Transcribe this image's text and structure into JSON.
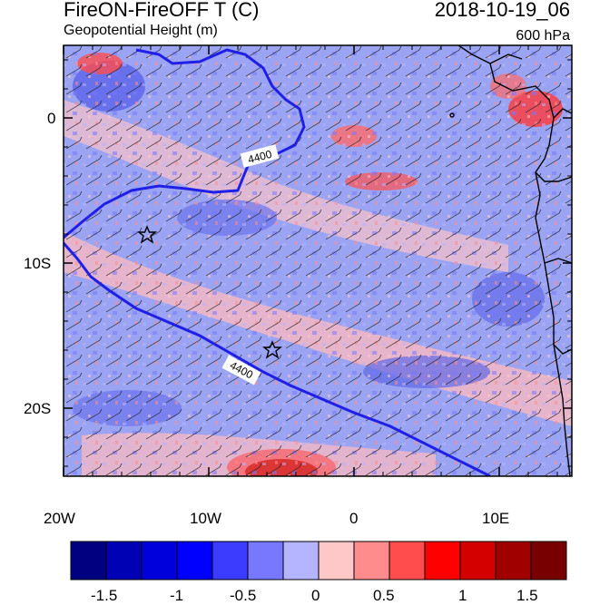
{
  "header": {
    "title": "FireON-FireOFF T (C)",
    "date": "2018-10-19_06",
    "subtitle": "Geopotential Height (m)",
    "level": "600 hPa"
  },
  "map": {
    "lat_ticks": [
      "0",
      "10S",
      "20S"
    ],
    "lon_ticks": [
      "20W",
      "10W",
      "0",
      "10E"
    ],
    "contour_labels": [
      "4400",
      "4400"
    ],
    "contour_color": "#1f1fe6",
    "markers": [
      "star-icon",
      "star-icon"
    ]
  },
  "colorbar": {
    "colors": [
      "#000080",
      "#0000b4",
      "#0000dc",
      "#0000ff",
      "#3c3cff",
      "#7878ff",
      "#b4b4ff",
      "#ffc8c8",
      "#ff8c8c",
      "#ff4c4c",
      "#ff0000",
      "#d40000",
      "#a00000",
      "#780000"
    ],
    "labels": [
      "-1.5",
      "-1",
      "-0.5",
      "0",
      "0.5",
      "1",
      "1.5"
    ]
  }
}
